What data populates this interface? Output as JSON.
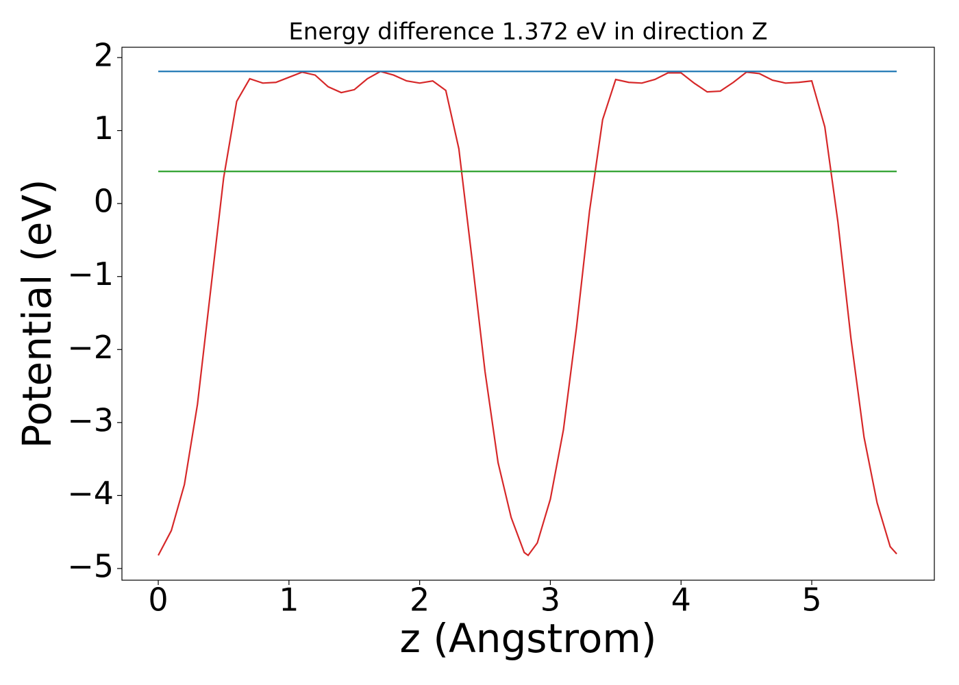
{
  "chart_data": {
    "type": "line",
    "title": "Energy difference 1.372 eV in direction Z",
    "x_label": "z (Angstrom)",
    "y_label": "Potential (eV)",
    "xlim": [
      -0.278,
      5.938
    ],
    "ylim": [
      -5.16,
      2.141
    ],
    "xticks": [
      0,
      1,
      2,
      3,
      4,
      5
    ],
    "yticks": [
      {
        "value": -5,
        "label": "−5"
      },
      {
        "value": -4,
        "label": "−4"
      },
      {
        "value": -3,
        "label": "−3"
      },
      {
        "value": -2,
        "label": "−2"
      },
      {
        "value": -1,
        "label": "−1"
      },
      0,
      1,
      2
    ],
    "grid": false,
    "series": [
      {
        "color": "#d62728",
        "x": [
          0,
          0.1,
          0.2,
          0.3,
          0.4,
          0.5,
          0.6,
          0.7,
          0.8,
          0.9,
          1.0,
          1.1,
          1.2,
          1.3,
          1.4,
          1.5,
          1.6,
          1.7,
          1.8,
          1.9,
          2.0,
          2.1,
          2.2,
          2.3,
          2.4,
          2.5,
          2.6,
          2.7,
          2.8,
          2.83,
          2.9,
          3.0,
          3.1,
          3.2,
          3.3,
          3.4,
          3.5,
          3.6,
          3.7,
          3.8,
          3.9,
          4.0,
          4.1,
          4.2,
          4.3,
          4.4,
          4.5,
          4.6,
          4.7,
          4.8,
          4.9,
          5.0,
          5.1,
          5.2,
          5.3,
          5.4,
          5.5,
          5.6,
          5.65
        ],
        "values": [
          -4.82,
          -4.48,
          -3.85,
          -2.75,
          -1.2,
          0.35,
          1.4,
          1.71,
          1.65,
          1.66,
          1.73,
          1.8,
          1.76,
          1.6,
          1.52,
          1.56,
          1.71,
          1.81,
          1.76,
          1.68,
          1.65,
          1.68,
          1.55,
          0.75,
          -0.75,
          -2.3,
          -3.55,
          -4.3,
          -4.78,
          -4.82,
          -4.65,
          -4.05,
          -3.1,
          -1.7,
          -0.1,
          1.15,
          1.7,
          1.66,
          1.65,
          1.7,
          1.79,
          1.79,
          1.65,
          1.53,
          1.54,
          1.66,
          1.8,
          1.78,
          1.69,
          1.65,
          1.66,
          1.68,
          1.05,
          -0.25,
          -1.85,
          -3.2,
          -4.1,
          -4.7,
          -4.8
        ]
      },
      {
        "color": "#1f77b4",
        "x": [
          0,
          5.65
        ],
        "values": [
          1.81,
          1.81
        ]
      },
      {
        "color": "#2ca02c",
        "x": [
          0,
          5.65
        ],
        "values": [
          0.44,
          0.44
        ]
      }
    ]
  }
}
